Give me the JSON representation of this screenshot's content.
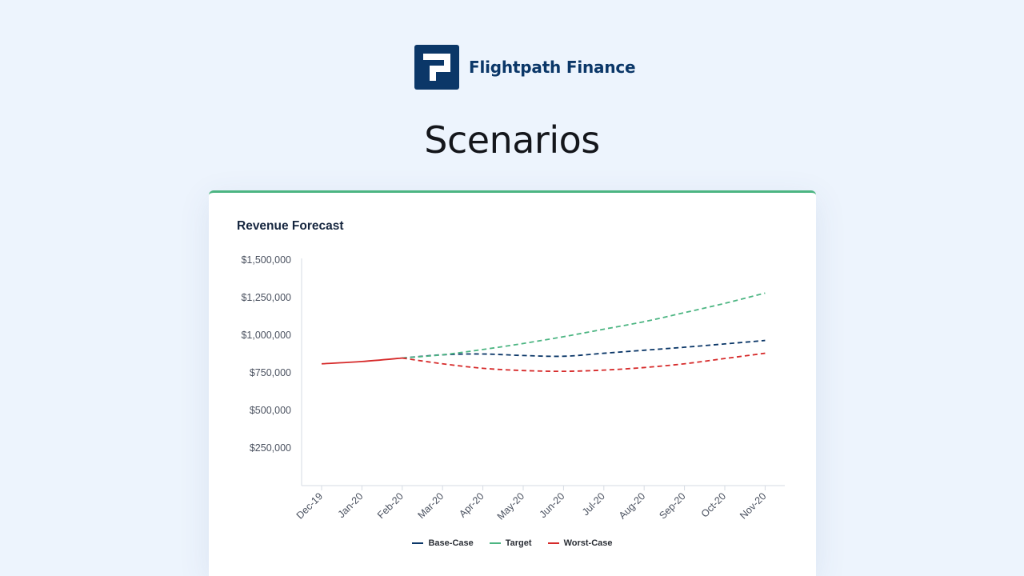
{
  "brand": {
    "name": "Flightpath Finance"
  },
  "page": {
    "title": "Scenarios"
  },
  "card": {
    "title": "Revenue Forecast"
  },
  "colors": {
    "base": "#0b3768",
    "target": "#4cb582",
    "worst": "#d62a2a",
    "accent": "#4cb582"
  },
  "icons": {
    "logo": "flightpath-logo-icon"
  },
  "chart_data": {
    "type": "line",
    "title": "Revenue Forecast",
    "xlabel": "",
    "ylabel": "",
    "x": [
      "Dec-19",
      "Jan-20",
      "Feb-20",
      "Mar-20",
      "Apr-20",
      "May-20",
      "Jun-20",
      "Jul-20",
      "Aug-20",
      "Sep-20",
      "Oct-20",
      "Nov-20"
    ],
    "ylim": [
      0,
      1500000
    ],
    "yticks": [
      {
        "value": 250000,
        "label": "$250,000"
      },
      {
        "value": 500000,
        "label": "$500,000"
      },
      {
        "value": 750000,
        "label": "$750,000"
      },
      {
        "value": 1000000,
        "label": "$1,000,000"
      },
      {
        "value": 1250000,
        "label": "$1,250,000"
      },
      {
        "value": 1500000,
        "label": "$1,500,000"
      }
    ],
    "grid": false,
    "legend_position": "bottom",
    "actual": {
      "values": [
        810000,
        825000,
        848000
      ],
      "color": "#d62a2a"
    },
    "series": [
      {
        "name": "Base-Case",
        "color": "#0b3768",
        "values": [
          null,
          null,
          848000,
          870000,
          875000,
          865000,
          860000,
          880000,
          900000,
          920000,
          942000,
          965000
        ]
      },
      {
        "name": "Target",
        "color": "#4cb582",
        "values": [
          null,
          null,
          848000,
          870000,
          905000,
          945000,
          990000,
          1040000,
          1090000,
          1150000,
          1212000,
          1280000
        ]
      },
      {
        "name": "Worst-Case",
        "color": "#d62a2a",
        "values": [
          null,
          null,
          848000,
          810000,
          780000,
          765000,
          760000,
          768000,
          785000,
          810000,
          845000,
          880000
        ]
      }
    ]
  }
}
